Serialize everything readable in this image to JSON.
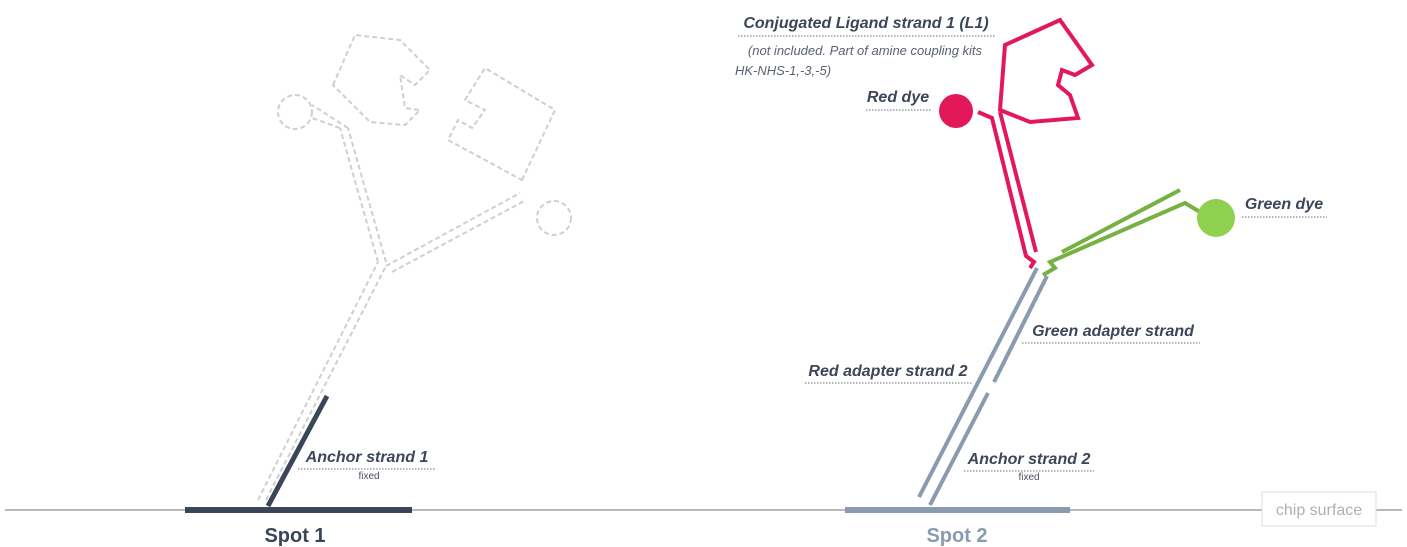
{
  "spots": [
    {
      "label": "Spot 1",
      "anchor": {
        "name": "Anchor strand 1",
        "note": "fixed"
      }
    },
    {
      "label": "Spot 2",
      "anchor": {
        "name": "Anchor strand 2",
        "note": "fixed"
      }
    }
  ],
  "ligand": {
    "name": "Conjugated Ligand strand 1 (L1)",
    "note": [
      "(not included. Part of amine coupling kits",
      "HK-NHS-1,-3,-5)"
    ]
  },
  "red_dye": "Red dye",
  "green_dye": "Green dye",
  "green_adapter": "Green adapter strand",
  "red_adapter": "Red adapter strand 2",
  "surface": "chip surface"
}
